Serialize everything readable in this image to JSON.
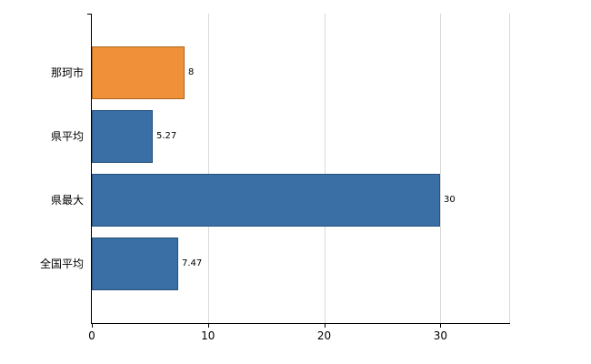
{
  "chart_data": {
    "type": "bar",
    "orientation": "horizontal",
    "title": "",
    "categories": [
      "那珂市",
      "県平均",
      "県最大",
      "全国平均"
    ],
    "values": [
      8,
      5.27,
      30,
      7.47
    ],
    "value_labels": [
      "8",
      "5.27",
      "30",
      "7.47"
    ],
    "series_colors": [
      "#f0913a",
      "#3a6fa5",
      "#3a6fa5",
      "#3a6fa5"
    ],
    "bar_border_colors": [
      "#a9661f",
      "#27527d",
      "#27527d",
      "#27527d"
    ],
    "x_ticks": [
      0,
      10,
      20,
      30
    ],
    "x_tick_labels": [
      "0",
      "10",
      "20",
      "30"
    ],
    "xlim": [
      0,
      36
    ],
    "grid": true,
    "legend": "none",
    "colors": {
      "gridline": "#d9d9d9",
      "axis": "#000000",
      "background": "#ffffff",
      "highlight_bar": "#f0913a",
      "default_bar": "#3a6fa5"
    }
  }
}
